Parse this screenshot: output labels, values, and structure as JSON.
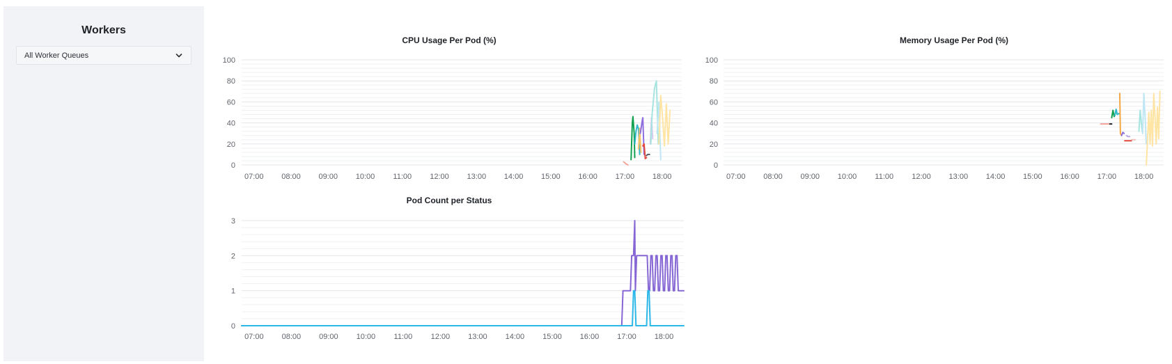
{
  "sidebar": {
    "title": "Workers",
    "queue_select": {
      "selected": "All Worker Queues"
    }
  },
  "chart_data": [
    {
      "id": "cpu",
      "type": "line",
      "title": "CPU Usage Per Pod (%)",
      "xlabel": "",
      "ylabel": "",
      "x_range": [
        "06:40",
        "18:32"
      ],
      "ylim": [
        0,
        100
      ],
      "y_ticks": [
        0,
        20,
        40,
        60,
        80,
        100
      ],
      "x_ticks": [
        "07:00",
        "08:00",
        "09:00",
        "10:00",
        "11:00",
        "12:00",
        "13:00",
        "14:00",
        "15:00",
        "16:00",
        "17:00",
        "18:00"
      ],
      "grid": true,
      "legend": "none",
      "series": [
        {
          "color": "#f4a59b",
          "x": [
            "16:58",
            "17:02",
            "17:05"
          ],
          "y": [
            3,
            1,
            0
          ]
        },
        {
          "color": "#12a150",
          "x": [
            "17:10",
            "17:12",
            "17:13",
            "17:15",
            "17:16"
          ],
          "y": [
            5,
            40,
            46,
            30,
            7
          ]
        },
        {
          "color": "#31b8c9",
          "x": [
            "17:16",
            "17:18",
            "17:20",
            "17:22",
            "17:24"
          ],
          "y": [
            20,
            32,
            38,
            34,
            10
          ]
        },
        {
          "color": "#f5c26b",
          "x": [
            "17:22",
            "17:24",
            "17:26"
          ],
          "y": [
            15,
            35,
            12
          ]
        },
        {
          "color": "#8d6ee0",
          "x": [
            "17:25",
            "17:28",
            "17:29",
            "17:31"
          ],
          "y": [
            30,
            42,
            45,
            10
          ]
        },
        {
          "color": "#e2483d",
          "x": [
            "17:29",
            "17:31",
            "17:33",
            "17:35"
          ],
          "y": [
            18,
            20,
            6,
            7
          ]
        },
        {
          "color": "#555b66",
          "x": [
            "17:35",
            "17:37",
            "17:40"
          ],
          "y": [
            9,
            10,
            10
          ]
        },
        {
          "color": "#d8c9f2",
          "x": [
            "17:41",
            "17:43",
            "17:45"
          ],
          "y": [
            20,
            45,
            25
          ]
        },
        {
          "color": "#a6e4df",
          "x": [
            "17:42",
            "17:44",
            "17:48",
            "17:51",
            "17:54"
          ],
          "y": [
            20,
            48,
            73,
            80,
            20
          ]
        },
        {
          "color": "#bfe6f5",
          "x": [
            "17:52",
            "17:55",
            "17:58"
          ],
          "y": [
            30,
            60,
            5
          ]
        },
        {
          "color": "#ffe4a3",
          "x": [
            "17:55",
            "17:58",
            "18:01",
            "18:04",
            "18:07",
            "18:10",
            "18:13"
          ],
          "y": [
            20,
            66,
            45,
            18,
            58,
            20,
            52
          ]
        }
      ]
    },
    {
      "id": "memory",
      "type": "line",
      "title": "Memory Usage Per Pod (%)",
      "xlabel": "",
      "ylabel": "",
      "x_range": [
        "06:40",
        "18:32"
      ],
      "ylim": [
        0,
        100
      ],
      "y_ticks": [
        0,
        20,
        40,
        60,
        80,
        100
      ],
      "x_ticks": [
        "07:00",
        "08:00",
        "09:00",
        "10:00",
        "11:00",
        "12:00",
        "13:00",
        "14:00",
        "15:00",
        "16:00",
        "17:00",
        "18:00"
      ],
      "grid": true,
      "legend": "none",
      "series": [
        {
          "color": "#f4a59b",
          "x": [
            "16:50",
            "17:05"
          ],
          "y": [
            39,
            39
          ]
        },
        {
          "color": "#222222",
          "x": [
            "17:05",
            "17:08"
          ],
          "y": [
            39,
            39
          ]
        },
        {
          "color": "#12a150",
          "x": [
            "17:08",
            "17:10",
            "17:12",
            "17:14"
          ],
          "y": [
            45,
            52,
            46,
            49
          ]
        },
        {
          "color": "#31b8c9",
          "x": [
            "17:13",
            "17:15",
            "17:17",
            "17:20"
          ],
          "y": [
            47,
            53,
            48,
            49
          ]
        },
        {
          "color": "#f5a742",
          "x": [
            "17:21",
            "17:22",
            "17:24"
          ],
          "y": [
            68,
            30,
            28
          ]
        },
        {
          "color": "#8d6ee0",
          "x": [
            "17:24",
            "17:26",
            "17:28"
          ],
          "y": [
            28,
            31,
            30
          ]
        },
        {
          "color": "#e2483d",
          "x": [
            "17:29",
            "17:32",
            "17:40"
          ],
          "y": [
            23,
            23,
            23
          ]
        },
        {
          "color": "#bba8ea",
          "x": [
            "17:32",
            "17:34",
            "17:37"
          ],
          "y": [
            28,
            27,
            27
          ]
        },
        {
          "color": "#f0c2bd",
          "x": [
            "17:40",
            "17:46"
          ],
          "y": [
            24,
            24
          ]
        },
        {
          "color": "#a6e4df",
          "x": [
            "17:52",
            "17:54",
            "17:56",
            "17:58"
          ],
          "y": [
            32,
            52,
            40,
            30
          ]
        },
        {
          "color": "#bfe6f5",
          "x": [
            "17:58",
            "18:00",
            "18:02",
            "18:04"
          ],
          "y": [
            30,
            68,
            45,
            20
          ]
        },
        {
          "color": "#ffe4a3",
          "x": [
            "18:04",
            "18:06",
            "18:08",
            "18:10",
            "18:12",
            "18:14",
            "18:16",
            "18:18",
            "18:20",
            "18:22",
            "18:24",
            "18:26"
          ],
          "y": [
            0,
            25,
            50,
            20,
            52,
            18,
            68,
            45,
            20,
            55,
            25,
            70
          ]
        }
      ]
    },
    {
      "id": "pods",
      "type": "line",
      "title": "Pod Count per Status",
      "xlabel": "",
      "ylabel": "",
      "x_range": [
        "06:40",
        "18:32"
      ],
      "ylim": [
        0,
        3
      ],
      "y_ticks": [
        0,
        1,
        2,
        3
      ],
      "x_ticks": [
        "07:00",
        "08:00",
        "09:00",
        "10:00",
        "11:00",
        "12:00",
        "13:00",
        "14:00",
        "15:00",
        "16:00",
        "17:00",
        "18:00"
      ],
      "grid": true,
      "legend": "none",
      "series": [
        {
          "color": "#8566d4",
          "x": [
            "06:40",
            "16:52",
            "16:54",
            "17:06",
            "17:08",
            "17:11",
            "17:13",
            "17:14",
            "17:16",
            "17:33",
            "17:35",
            "17:37",
            "17:39",
            "17:41",
            "17:43",
            "17:45",
            "17:47",
            "17:49",
            "17:51",
            "17:53",
            "17:55",
            "17:57",
            "17:59",
            "18:01",
            "18:03",
            "18:05",
            "18:07",
            "18:09",
            "18:11",
            "18:13",
            "18:15",
            "18:17",
            "18:19",
            "18:21",
            "18:23",
            "18:32"
          ],
          "y": [
            0,
            0,
            1,
            1,
            2,
            2,
            3,
            1,
            2,
            2,
            1,
            1,
            2,
            2,
            1,
            1,
            2,
            2,
            1,
            1,
            2,
            2,
            1,
            1,
            2,
            2,
            1,
            1,
            2,
            2,
            1,
            1,
            2,
            2,
            1,
            1
          ]
        },
        {
          "color": "#2bb8e8",
          "x": [
            "06:40",
            "17:09",
            "17:11",
            "17:13",
            "17:15",
            "17:32",
            "17:34",
            "17:36",
            "17:38",
            "18:32"
          ],
          "y": [
            0,
            0,
            1,
            1,
            0,
            0,
            1,
            1,
            0,
            0
          ]
        }
      ]
    }
  ]
}
